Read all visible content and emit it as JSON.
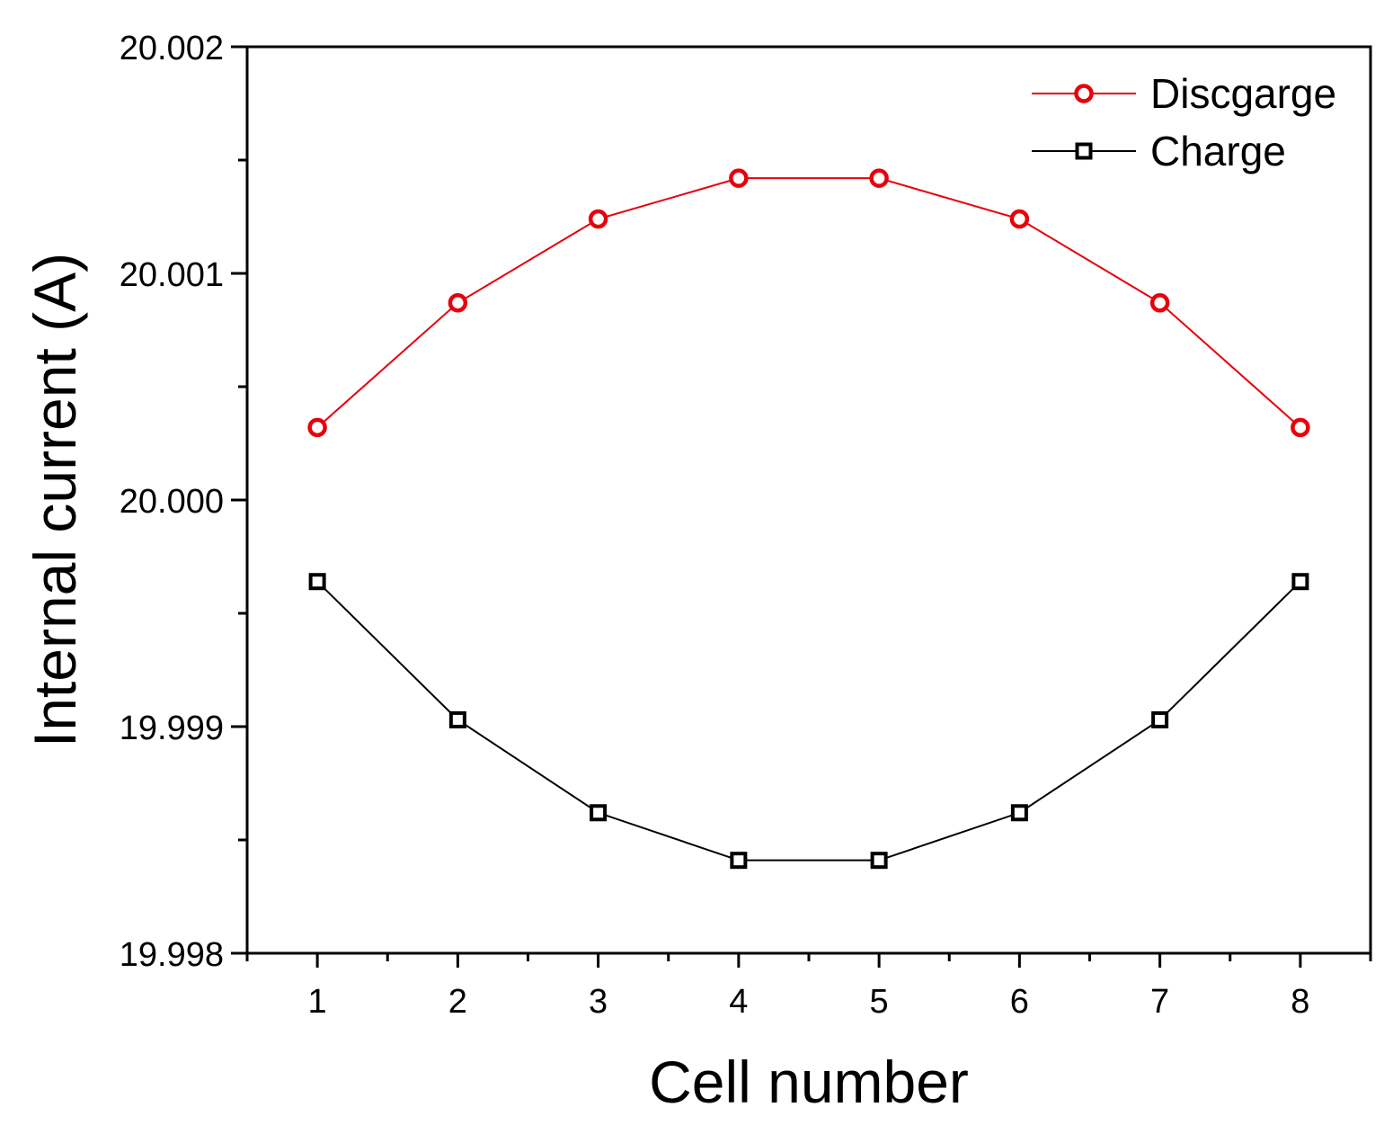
{
  "chart_data": {
    "type": "line",
    "title": "",
    "xlabel": "Cell number",
    "ylabel": "Internal current (A)",
    "x": [
      1,
      2,
      3,
      4,
      5,
      6,
      7,
      8
    ],
    "xlim": [
      0.5,
      8.5
    ],
    "ylim": [
      19.998,
      20.002
    ],
    "xticks": [
      "1",
      "2",
      "3",
      "4",
      "5",
      "6",
      "7",
      "8"
    ],
    "yticks": [
      "19.998",
      "19.999",
      "20.000",
      "20.001",
      "20.002"
    ],
    "grid": false,
    "legend_position": "top-right",
    "series": [
      {
        "name": "Discgarge",
        "color": "#e8000b",
        "marker": "circle",
        "values": [
          20.00032,
          20.00087,
          20.00124,
          20.00142,
          20.00142,
          20.00124,
          20.00087,
          20.00032
        ]
      },
      {
        "name": "Charge",
        "color": "#000000",
        "marker": "square",
        "values": [
          19.99964,
          19.99903,
          19.99862,
          19.99841,
          19.99841,
          19.99862,
          19.99903,
          19.99964
        ]
      }
    ]
  }
}
